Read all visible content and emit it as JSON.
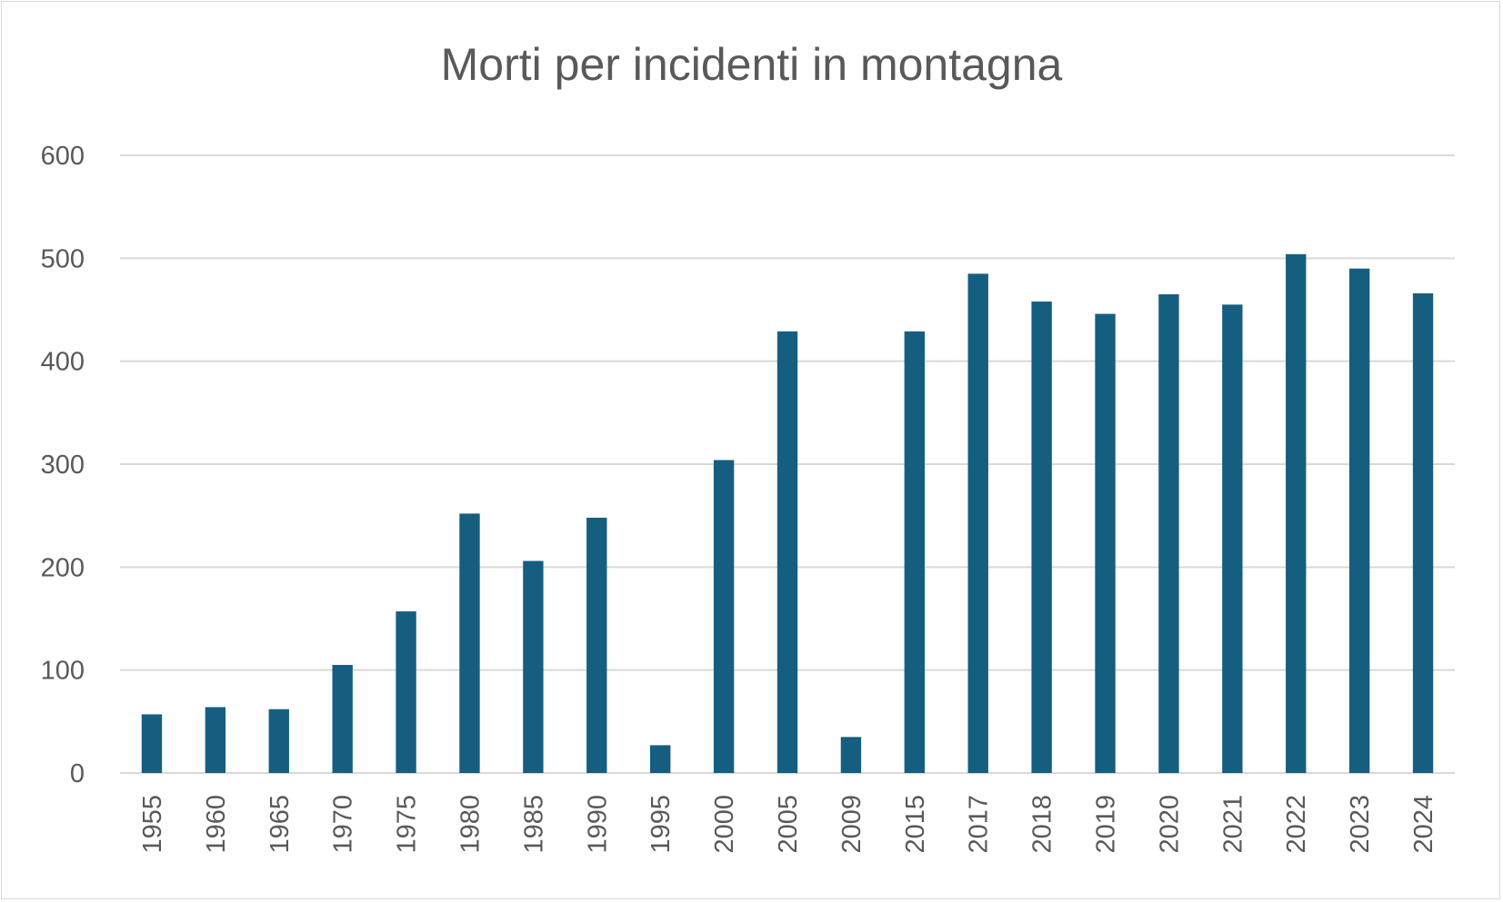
{
  "chart_data": {
    "type": "bar",
    "title": "Morti per incidenti in montagna",
    "xlabel": "",
    "ylabel": "",
    "ylim": [
      0,
      600
    ],
    "yticks": [
      0,
      100,
      200,
      300,
      400,
      500,
      600
    ],
    "grid": true,
    "legend": "none",
    "bar_color": "#165e80",
    "categories": [
      "1955",
      "1960",
      "1965",
      "1970",
      "1975",
      "1980",
      "1985",
      "1990",
      "1995",
      "2000",
      "2005",
      "2009",
      "2015",
      "2017",
      "2018",
      "2019",
      "2020",
      "2021",
      "2022",
      "2023",
      "2024"
    ],
    "values": [
      57,
      64,
      62,
      105,
      157,
      252,
      206,
      248,
      27,
      304,
      429,
      35,
      429,
      485,
      458,
      446,
      465,
      455,
      504,
      490,
      466
    ]
  }
}
